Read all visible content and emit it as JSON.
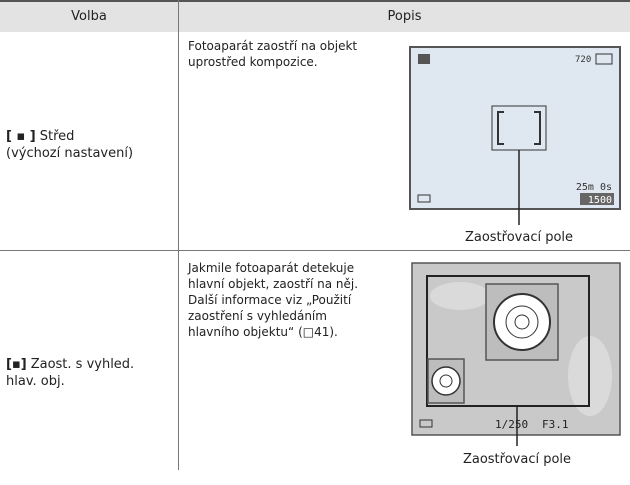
{
  "table": {
    "header": [
      "Volba",
      "Popis"
    ],
    "rows": [
      {
        "option": {
          "icon": "[ ▪ ]",
          "lines": [
            "Střed",
            "(výchozí nastavení)"
          ]
        },
        "description": [
          "Fotoaparát zaostří na objekt",
          "uprostřed kompozice."
        ],
        "screen": {
          "top_right": "720",
          "time": "25m 0s",
          "count": "1500"
        },
        "caption": "Zaostřovací pole"
      },
      {
        "option": {
          "icon": "[▪]",
          "lines": [
            "Zaost. s vyhled.",
            "hlav. obj."
          ]
        },
        "description": [
          "Jakmile fotoaparát detekuje",
          "hlavní objekt, zaostří na něj.",
          "Další informace viz „Použití",
          "zaostření s vyhledáním",
          "hlavního objektu“ (□41)."
        ],
        "screen": {
          "shutter": "1/250",
          "aperture": "F3.1"
        },
        "caption": "Zaostřovací pole"
      }
    ]
  }
}
